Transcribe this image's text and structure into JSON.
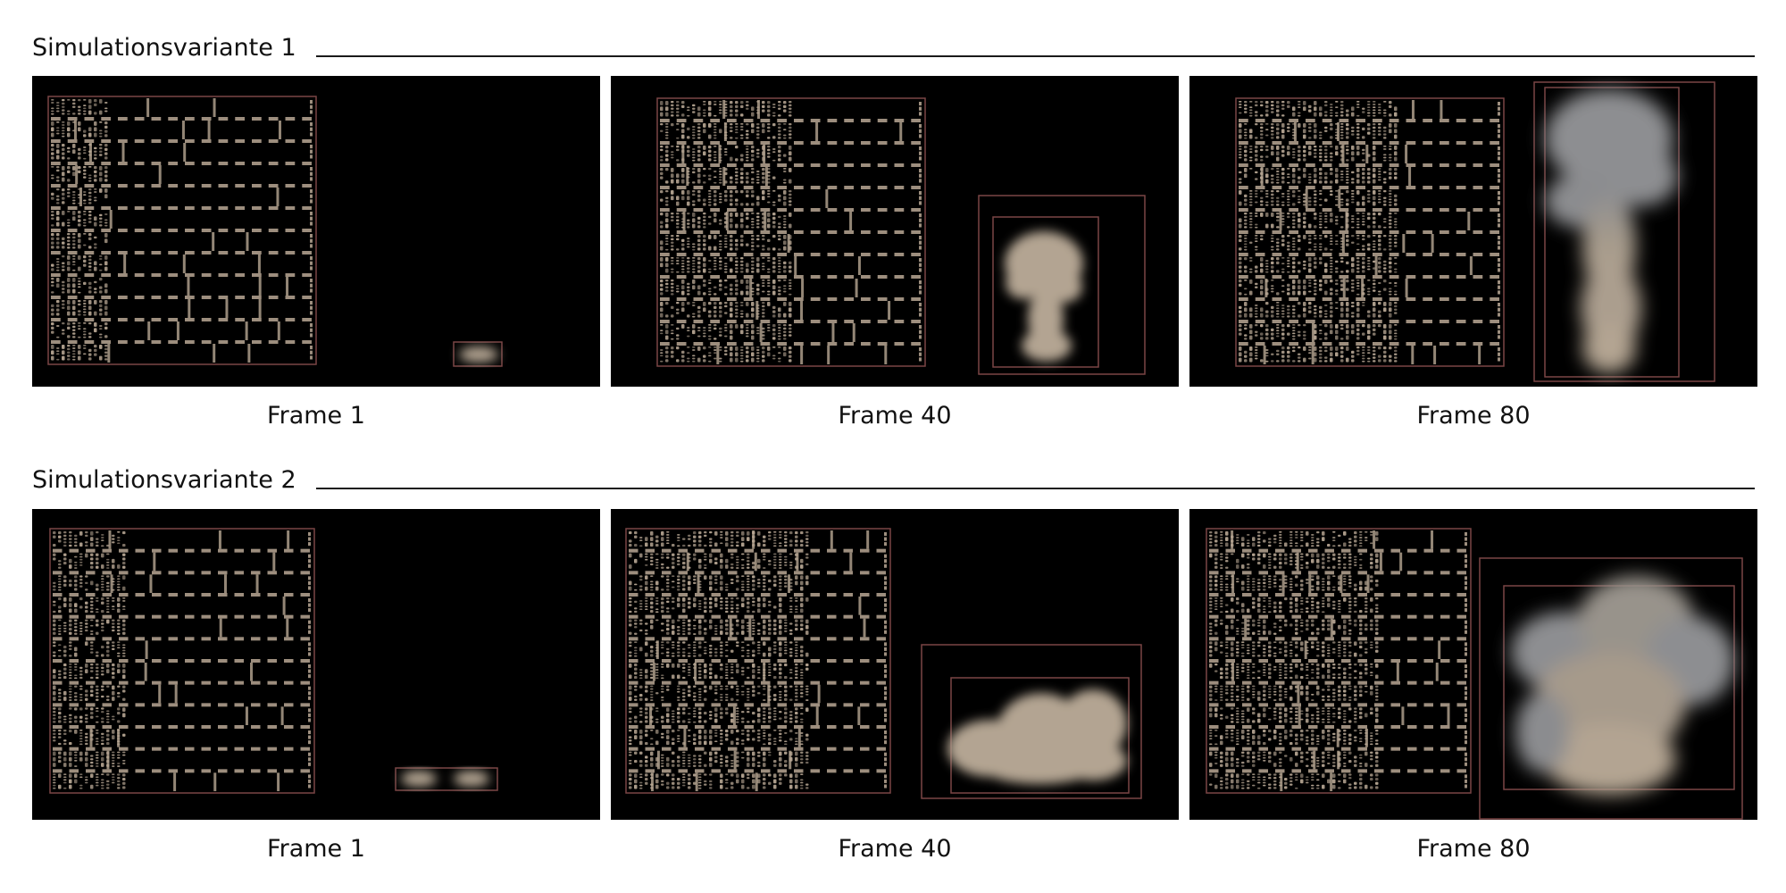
{
  "variants": [
    {
      "title": "Simulationsvariante 1",
      "frames": [
        {
          "label": "Frame 1",
          "sim_stage": "start"
        },
        {
          "label": "Frame 40",
          "sim_stage": "rising"
        },
        {
          "label": "Frame 80",
          "sim_stage": "plume"
        }
      ]
    },
    {
      "title": "Simulationsvariante 2",
      "frames": [
        {
          "label": "Frame 1",
          "sim_stage": "start"
        },
        {
          "label": "Frame 40",
          "sim_stage": "billow"
        },
        {
          "label": "Frame 80",
          "sim_stage": "cloud"
        }
      ]
    }
  ],
  "colors": {
    "panel_bg": "#000000",
    "grid": "#b8a794",
    "bbox": "#7a4545",
    "smoke": "#b3a492",
    "smoke_gray": "#8d8e91"
  }
}
